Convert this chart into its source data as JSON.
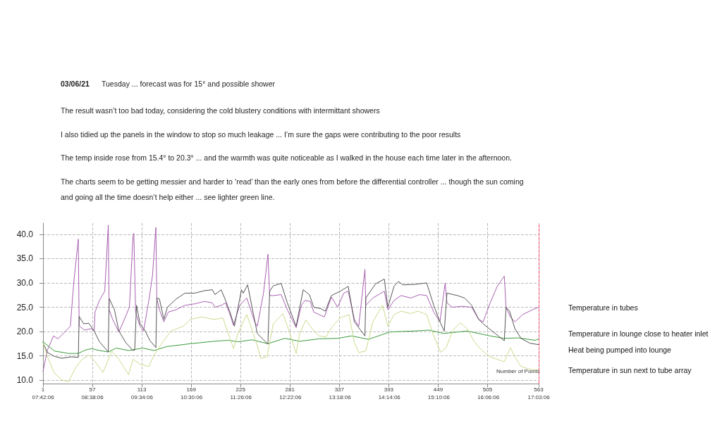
{
  "chart_data": {
    "type": "line",
    "title": "03/06/21",
    "subtitle": "Tuesday  ...  forecast was for 15° and possible shower",
    "annotations": [
      "The result wasn’t too bad today, considering the cold blustery conditions with intermittant showers",
      "I also tidied up the panels in the window to stop so much leakage  ...  I’m sure the gaps were contributing to the poor results",
      "The temp inside rose from 15.4° to 20.3°  ...  and the warmth was quite noticeable as I walked in the house each time later in the afternoon.",
      "The charts seem to be getting messier and harder to ‘read’ than the early ones from before the differential controller  ...  though the sun coming",
      "and going all the time doesn’t help either  ...  see lighter green line."
    ],
    "xlabel": "Number of Points",
    "xlim": [
      1,
      563
    ],
    "xticks": [
      1,
      57,
      113,
      169,
      225,
      281,
      337,
      393,
      449,
      505,
      563
    ],
    "x2lim": [
      7.7017,
      17.0517
    ],
    "x2ticks": [
      {
        "value": 7.7017,
        "label": "07:42:06"
      },
      {
        "value": 8.635,
        "label": "08:38:06"
      },
      {
        "value": 9.5683,
        "label": "09:34:06"
      },
      {
        "value": 10.5017,
        "label": "10:30:06"
      },
      {
        "value": 11.435,
        "label": "11:26:06"
      },
      {
        "value": 12.3683,
        "label": "12:22:06"
      },
      {
        "value": 13.3017,
        "label": "13:18:06"
      },
      {
        "value": 14.235,
        "label": "14:14:06"
      },
      {
        "value": 15.1683,
        "label": "15:10:06"
      },
      {
        "value": 16.1017,
        "label": "16:06:06"
      },
      {
        "value": 17.0517,
        "label": "17:03:06"
      }
    ],
    "ylim": [
      9.3,
      42.3
    ],
    "yticks": [
      {
        "value": 10,
        "label": "10.0"
      },
      {
        "value": 15,
        "label": "15.0"
      },
      {
        "value": 20,
        "label": "20.0"
      },
      {
        "value": 25,
        "label": "25.0"
      },
      {
        "value": 30,
        "label": "30.0"
      },
      {
        "value": 35,
        "label": "35.0"
      },
      {
        "value": 40,
        "label": "40.0"
      }
    ],
    "grid": true,
    "legend": false,
    "marker": "none",
    "line_style": "solid",
    "ref_lines": [
      {
        "axis": "x",
        "value": 563,
        "color": "#ff4060",
        "line_style": "dashed"
      }
    ],
    "series": [
      {
        "name": "Temperature in tubes",
        "color": "#a860b0",
        "x": [
          1,
          6,
          13,
          18,
          32,
          36,
          41,
          42,
          48,
          56,
          59,
          60,
          65,
          71,
          75,
          76,
          80,
          87,
          92,
          99,
          103,
          104,
          106,
          111,
          115,
          121,
          125,
          129,
          130,
          133,
          138,
          143,
          152,
          162,
          173,
          184,
          193,
          196,
          203,
          208,
          213,
          217,
          224,
          232,
          241,
          244,
          251,
          256,
          258,
          262,
          271,
          278,
          288,
          294,
          298,
          304,
          308,
          314,
          320,
          328,
          335,
          342,
          347,
          354,
          359,
          366,
          367,
          375,
          388,
          392,
          399,
          407,
          418,
          428,
          436,
          444,
          451,
          457,
          459,
          465,
          476,
          487,
          495,
          500,
          508,
          516,
          524,
          526,
          531,
          536,
          545,
          556,
          563
        ],
        "values": [
          11.8,
          16.2,
          19.1,
          18.5,
          21.1,
          30.3,
          39.0,
          21.2,
          20.3,
          20.6,
          20.1,
          24.0,
          26.4,
          28.3,
          41.9,
          24.5,
          22.5,
          19.9,
          22.0,
          25.0,
          39.5,
          40.2,
          24.0,
          21.1,
          20.1,
          26.4,
          31.3,
          41.4,
          26.9,
          24.5,
          22.0,
          24.0,
          24.5,
          25.4,
          25.7,
          26.2,
          25.9,
          25.0,
          25.4,
          25.9,
          23.5,
          21.3,
          25.4,
          26.9,
          22.0,
          21.1,
          27.9,
          35.9,
          27.4,
          27.4,
          27.6,
          24.5,
          20.8,
          25.4,
          26.4,
          26.2,
          24.0,
          23.5,
          23.0,
          27.1,
          25.0,
          27.9,
          28.3,
          22.5,
          21.1,
          32.8,
          25.4,
          26.9,
          28.3,
          24.5,
          26.4,
          27.4,
          26.9,
          27.6,
          27.4,
          24.0,
          22.0,
          30.0,
          25.9,
          25.0,
          25.2,
          25.0,
          22.5,
          22.0,
          25.9,
          29.3,
          31.4,
          25.0,
          23.0,
          22.0,
          23.5,
          24.5,
          25.0
        ]
      },
      {
        "name": "Temperature in lounge close to heater inlet",
        "color": "#3a9a3a",
        "x": [
          1,
          14,
          30,
          41,
          49,
          56,
          65,
          75,
          84,
          98,
          114,
          127,
          141,
          168,
          195,
          211,
          222,
          238,
          256,
          275,
          292,
          314,
          335,
          351,
          370,
          394,
          420,
          439,
          455,
          482,
          508,
          524,
          540,
          559,
          563
        ],
        "values": [
          17.9,
          16.0,
          15.5,
          15.5,
          16.2,
          16.5,
          16.1,
          15.8,
          16.6,
          16.1,
          16.6,
          16.1,
          16.9,
          17.5,
          18.0,
          18.2,
          17.9,
          18.3,
          17.5,
          18.6,
          18.0,
          18.5,
          18.6,
          19.1,
          18.4,
          19.9,
          20.1,
          20.3,
          19.6,
          20.1,
          19.1,
          18.6,
          18.7,
          18.2,
          18.5
        ]
      },
      {
        "name": "Heat being pumped into lounge",
        "color": "#555555",
        "x": [
          1,
          6,
          14,
          22,
          33,
          41,
          42,
          47,
          53,
          59,
          65,
          75,
          76,
          82,
          87,
          95,
          103,
          105,
          107,
          111,
          117,
          122,
          129,
          130,
          133,
          138,
          142,
          152,
          162,
          173,
          184,
          193,
          196,
          203,
          208,
          213,
          218,
          226,
          228,
          233,
          238,
          244,
          256,
          258,
          262,
          271,
          278,
          288,
          296,
          303,
          308,
          316,
          321,
          328,
          338,
          347,
          354,
          366,
          367,
          378,
          388,
          392,
          399,
          404,
          409,
          423,
          436,
          444,
          451,
          456,
          459,
          471,
          479,
          487,
          495,
          500,
          524,
          526,
          530,
          536,
          543,
          553,
          563
        ],
        "values": [
          17.7,
          15.7,
          14.9,
          14.5,
          14.8,
          14.7,
          23.1,
          21.6,
          21.7,
          20.1,
          17.9,
          15.8,
          26.8,
          24.5,
          20.1,
          17.7,
          16.1,
          16.2,
          25.4,
          21.6,
          20.1,
          18.2,
          16.7,
          26.9,
          26.7,
          22.5,
          25.0,
          26.7,
          27.9,
          27.9,
          28.4,
          28.6,
          27.6,
          28.6,
          26.4,
          24.0,
          21.1,
          28.6,
          27.9,
          29.6,
          25.0,
          19.6,
          17.4,
          28.3,
          29.4,
          29.9,
          25.9,
          21.1,
          28.6,
          27.6,
          25.0,
          24.7,
          24.2,
          27.4,
          28.3,
          29.3,
          22.0,
          19.1,
          26.9,
          29.8,
          30.8,
          25.0,
          29.3,
          30.3,
          29.6,
          29.7,
          30.0,
          25.4,
          22.0,
          20.1,
          27.9,
          27.4,
          26.9,
          25.4,
          22.5,
          21.6,
          18.1,
          25.0,
          24.2,
          20.6,
          18.6,
          17.6,
          17.3
        ]
      },
      {
        "name": "Temperature in sun next to tube array",
        "color": "#c8dc8c",
        "x": [
          1,
          6,
          14,
          22,
          30,
          38,
          45,
          53,
          60,
          69,
          79,
          87,
          98,
          103,
          111,
          121,
          127,
          135,
          146,
          160,
          168,
          181,
          195,
          205,
          212,
          217,
          222,
          232,
          243,
          248,
          255,
          262,
          273,
          281,
          288,
          292,
          299,
          306,
          314,
          322,
          328,
          338,
          348,
          354,
          359,
          367,
          375,
          386,
          392,
          399,
          407,
          418,
          426,
          436,
          444,
          452,
          458,
          466,
          474,
          482,
          490,
          498,
          508,
          524,
          531,
          536,
          543,
          556,
          563
        ],
        "values": [
          17.7,
          14.8,
          11.4,
          10.1,
          9.7,
          12.6,
          14.2,
          15.2,
          13.8,
          11.6,
          16.0,
          14.3,
          11.1,
          14.3,
          13.3,
          12.8,
          15.2,
          17.4,
          20.1,
          21.1,
          22.5,
          23.0,
          22.5,
          22.8,
          19.1,
          16.5,
          19.6,
          23.5,
          17.7,
          14.5,
          14.8,
          21.6,
          23.7,
          19.6,
          15.5,
          19.6,
          22.4,
          20.6,
          19.1,
          18.9,
          20.8,
          22.8,
          23.5,
          17.7,
          15.7,
          16.0,
          22.0,
          25.4,
          21.1,
          23.5,
          24.2,
          23.7,
          24.2,
          23.5,
          19.1,
          15.7,
          16.7,
          20.3,
          21.8,
          20.6,
          17.9,
          16.2,
          14.8,
          13.8,
          16.7,
          14.8,
          12.8,
          12.1,
          12.1
        ]
      }
    ]
  }
}
